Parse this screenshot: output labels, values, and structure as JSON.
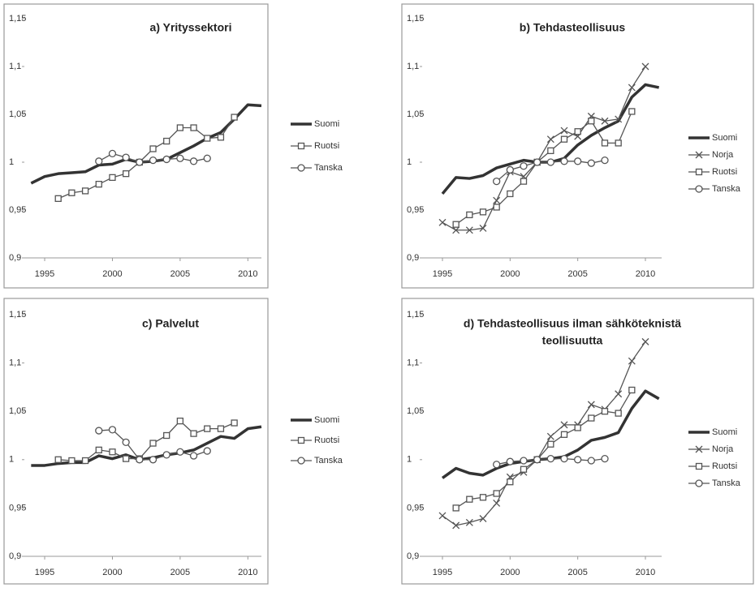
{
  "chart_data": [
    {
      "type": "line",
      "title": "a) Yrityssektori",
      "x": [
        1994,
        1995,
        1996,
        1997,
        1998,
        1999,
        2000,
        2001,
        2002,
        2003,
        2004,
        2005,
        2006,
        2007,
        2008,
        2009,
        2010,
        2011
      ],
      "xlim": [
        1993.5,
        2011
      ],
      "xticks": [
        1995,
        2000,
        2005,
        2010
      ],
      "ylim": [
        0.9,
        1.15
      ],
      "yticks": [
        {
          "value": 0.9,
          "label": "0,9"
        },
        {
          "value": 0.95,
          "label": "0,95"
        },
        1,
        {
          "value": 1.05,
          "label": "1,05"
        },
        {
          "value": 1.1,
          "label": "1,1"
        },
        {
          "value": 1.15,
          "label": "1,15"
        }
      ],
      "series": [
        {
          "name": "Suomi",
          "color": "#333333",
          "marker": "none",
          "values": [
            0.978,
            0.985,
            0.988,
            0.989,
            0.99,
            0.997,
            0.998,
            1.003,
            1.0,
            1.001,
            1.003,
            1.01,
            1.017,
            1.025,
            1.031,
            1.045,
            1.06,
            1.059
          ]
        },
        {
          "name": "Ruotsi",
          "color": "#555555",
          "marker": "square",
          "values": [
            null,
            null,
            0.962,
            0.968,
            0.97,
            0.977,
            0.984,
            0.988,
            1.0,
            1.014,
            1.022,
            1.036,
            1.036,
            1.025,
            1.026,
            1.047,
            null,
            null
          ]
        },
        {
          "name": "Tanska",
          "color": "#555555",
          "marker": "circle",
          "values": [
            null,
            null,
            null,
            null,
            null,
            1.001,
            1.009,
            1.005,
            1.0,
            1.002,
            1.003,
            1.004,
            1.001,
            1.004,
            null,
            null,
            null,
            null
          ]
        }
      ]
    },
    {
      "type": "line",
      "title": "b) Tehdasteollisuus",
      "x": [
        1995,
        1996,
        1997,
        1998,
        1999,
        2000,
        2001,
        2002,
        2003,
        2004,
        2005,
        2006,
        2007,
        2008,
        2009,
        2010,
        2011
      ],
      "xlim": [
        1993.5,
        2011.2
      ],
      "xticks": [
        1995,
        2000,
        2005,
        2010
      ],
      "ylim": [
        0.9,
        1.15
      ],
      "yticks": [
        {
          "value": 0.9,
          "label": "0,9"
        },
        {
          "value": 0.95,
          "label": "0,95"
        },
        1,
        {
          "value": 1.05,
          "label": "1,05"
        },
        {
          "value": 1.1,
          "label": "1,1"
        },
        {
          "value": 1.15,
          "label": "1,15"
        }
      ],
      "series": [
        {
          "name": "Suomi",
          "color": "#333333",
          "marker": "none",
          "values": [
            0.967,
            0.984,
            0.983,
            0.986,
            0.994,
            0.998,
            1.002,
            1.0,
            1.0,
            1.004,
            1.018,
            1.028,
            1.036,
            1.043,
            1.068,
            1.081,
            1.078
          ]
        },
        {
          "name": "Norja",
          "color": "#555555",
          "marker": "x",
          "values": [
            0.937,
            0.929,
            0.929,
            0.931,
            0.96,
            0.99,
            0.985,
            1.0,
            1.024,
            1.033,
            1.027,
            1.048,
            1.043,
            1.045,
            1.078,
            1.1,
            null
          ]
        },
        {
          "name": "Ruotsi",
          "color": "#555555",
          "marker": "square",
          "values": [
            null,
            0.935,
            0.945,
            0.948,
            0.953,
            0.967,
            0.98,
            1.0,
            1.012,
            1.024,
            1.032,
            1.043,
            1.02,
            1.02,
            1.053,
            null,
            null
          ]
        },
        {
          "name": "Tanska",
          "color": "#555555",
          "marker": "circle",
          "values": [
            null,
            null,
            null,
            null,
            0.98,
            0.992,
            0.996,
            1.0,
            1.0,
            1.001,
            1.001,
            0.999,
            1.002,
            null,
            null,
            null,
            null
          ]
        }
      ]
    },
    {
      "type": "line",
      "title": "c) Palvelut",
      "x": [
        1994,
        1995,
        1996,
        1997,
        1998,
        1999,
        2000,
        2001,
        2002,
        2003,
        2004,
        2005,
        2006,
        2007,
        2008,
        2009,
        2010,
        2011
      ],
      "xlim": [
        1993.5,
        2011
      ],
      "xticks": [
        1995,
        2000,
        2005,
        2010
      ],
      "ylim": [
        0.9,
        1.15
      ],
      "yticks": [
        {
          "value": 0.9,
          "label": "0,9"
        },
        {
          "value": 0.95,
          "label": "0,95"
        },
        1,
        {
          "value": 1.05,
          "label": "1,05"
        },
        {
          "value": 1.1,
          "label": "1,1"
        },
        {
          "value": 1.15,
          "label": "1,15"
        }
      ],
      "series": [
        {
          "name": "Suomi",
          "color": "#333333",
          "marker": "none",
          "values": [
            0.994,
            0.994,
            0.996,
            0.997,
            0.997,
            1.004,
            1.001,
            1.005,
            1.0,
            1.002,
            1.005,
            1.007,
            1.01,
            1.017,
            1.024,
            1.022,
            1.032,
            1.034
          ]
        },
        {
          "name": "Ruotsi",
          "color": "#555555",
          "marker": "square",
          "values": [
            null,
            null,
            1.0,
            0.999,
            0.999,
            1.01,
            1.008,
            1.001,
            1.001,
            1.017,
            1.025,
            1.04,
            1.027,
            1.032,
            1.032,
            1.038,
            null,
            null
          ]
        },
        {
          "name": "Tanska",
          "color": "#555555",
          "marker": "circle",
          "values": [
            null,
            null,
            null,
            null,
            null,
            1.03,
            1.031,
            1.018,
            1.0,
            1.0,
            1.005,
            1.008,
            1.004,
            1.009,
            null,
            null,
            null,
            null
          ]
        }
      ]
    },
    {
      "type": "line",
      "title": [
        "d) Tehdasteollisuus ilman sähköteknistä",
        "teollisuutta"
      ],
      "x": [
        1995,
        1996,
        1997,
        1998,
        1999,
        2000,
        2001,
        2002,
        2003,
        2004,
        2005,
        2006,
        2007,
        2008,
        2009,
        2010,
        2011
      ],
      "xlim": [
        1993.5,
        2011.2
      ],
      "xticks": [
        1995,
        2000,
        2005,
        2010
      ],
      "ylim": [
        0.9,
        1.15
      ],
      "yticks": [
        {
          "value": 0.9,
          "label": "0,9"
        },
        {
          "value": 0.95,
          "label": "0,95"
        },
        1,
        {
          "value": 1.05,
          "label": "1,05"
        },
        {
          "value": 1.1,
          "label": "1,1"
        },
        {
          "value": 1.15,
          "label": "1,15"
        }
      ],
      "series": [
        {
          "name": "Suomi",
          "color": "#333333",
          "marker": "none",
          "values": [
            0.981,
            0.991,
            0.986,
            0.984,
            0.991,
            0.996,
            0.998,
            1.0,
            1.001,
            1.003,
            1.01,
            1.02,
            1.023,
            1.028,
            1.053,
            1.071,
            1.063
          ]
        },
        {
          "name": "Norja",
          "color": "#555555",
          "marker": "x",
          "values": [
            0.942,
            0.932,
            0.935,
            0.939,
            0.955,
            0.982,
            0.987,
            1.0,
            1.024,
            1.036,
            1.036,
            1.057,
            1.052,
            1.068,
            1.102,
            1.122,
            null
          ]
        },
        {
          "name": "Ruotsi",
          "color": "#555555",
          "marker": "square",
          "values": [
            null,
            0.95,
            0.959,
            0.961,
            0.965,
            0.977,
            0.99,
            1.0,
            1.016,
            1.026,
            1.033,
            1.043,
            1.05,
            1.048,
            1.072,
            null,
            null
          ]
        },
        {
          "name": "Tanska",
          "color": "#555555",
          "marker": "circle",
          "values": [
            null,
            null,
            null,
            null,
            0.995,
            0.998,
            0.999,
            1.0,
            1.001,
            1.001,
            1.0,
            0.999,
            1.001,
            null,
            null,
            null,
            null
          ]
        }
      ]
    }
  ]
}
